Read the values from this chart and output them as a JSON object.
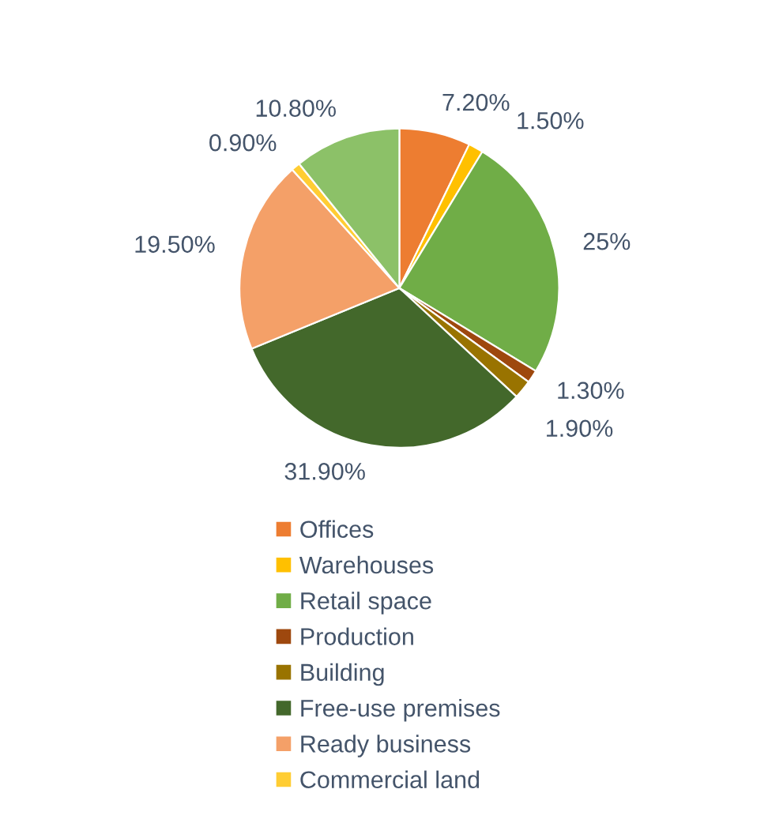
{
  "chart_data": {
    "type": "pie",
    "categories": [
      "Offices",
      "Warehouses",
      "Retail space",
      "Production",
      "Building",
      "Free-use premises",
      "Ready business",
      "Commercial land",
      null
    ],
    "values": [
      7.2,
      1.5,
      25,
      1.3,
      1.9,
      31.9,
      19.5,
      0.9,
      10.8
    ],
    "value_labels": [
      "7.20%",
      "1.50%",
      "25%",
      "1.30%",
      "1.90%",
      "31.90%",
      "19.50%",
      "0.90%",
      "10.80%"
    ],
    "colors": [
      "#ed7d31",
      "#ffc000",
      "#70ad47",
      "#9e480e",
      "#997300",
      "#43682b",
      "#f4a068",
      "#ffcd33",
      "#8cc168"
    ],
    "legend": "bottom"
  }
}
